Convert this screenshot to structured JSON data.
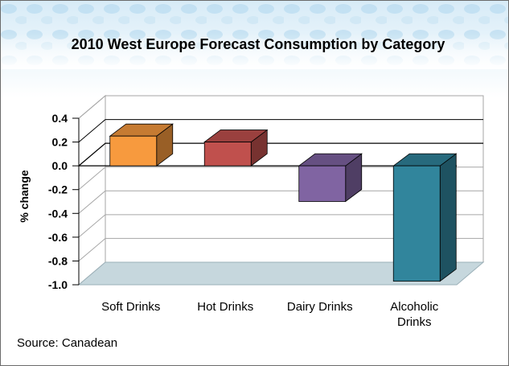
{
  "chart_data": {
    "type": "bar",
    "title": "2010 West Europe Forecast Consumption by Category",
    "ylabel": "% change",
    "xlabel": "",
    "categories": [
      "Soft Drinks",
      "Hot Drinks",
      "Dairy Drinks",
      "Alcoholic Drinks"
    ],
    "values": [
      0.25,
      0.2,
      -0.3,
      -0.97
    ],
    "ylim": [
      -1.0,
      0.4
    ],
    "yticks": [
      "0.4",
      "0.2",
      "0.0",
      "-0.2",
      "-0.4",
      "-0.6",
      "-0.8",
      "-1.0"
    ],
    "grid": true,
    "legend": "none",
    "colors": [
      "#f79a3e",
      "#c0504d",
      "#8064a2",
      "#31859c"
    ],
    "source": "Source: Canadean"
  }
}
